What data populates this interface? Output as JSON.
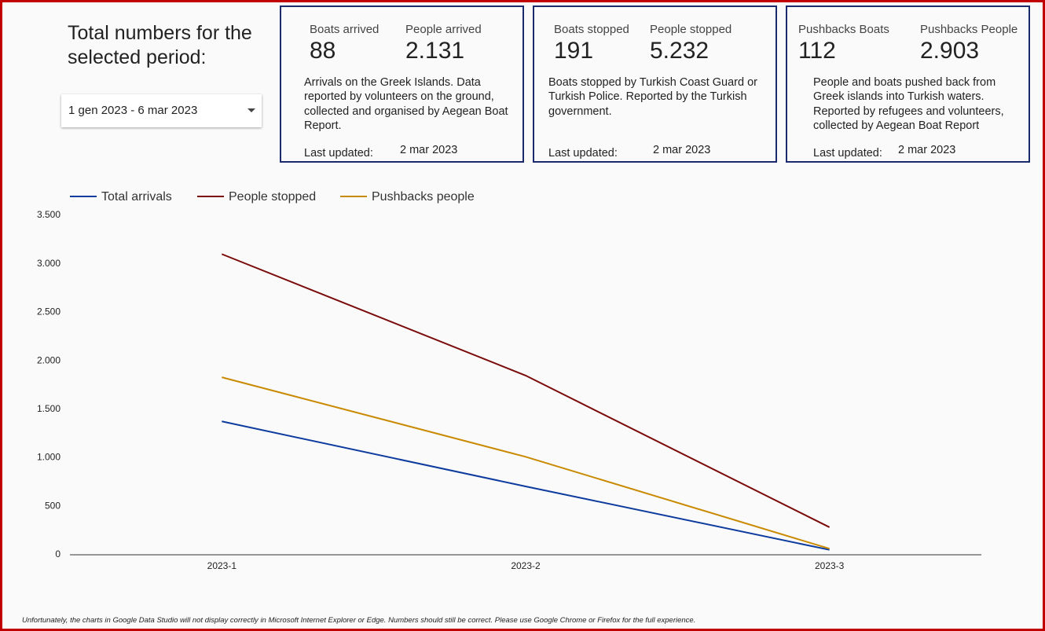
{
  "heading": "Total numbers for the selected period:",
  "date_range": "1 gen 2023 - 6 mar 2023",
  "cards": [
    {
      "stats": [
        {
          "label": "Boats arrived",
          "value": "88"
        },
        {
          "label": "People arrived",
          "value": "2.131"
        }
      ],
      "description": "Arrivals on the Greek Islands. Data reported by volunteers on the ground, collected and organised by Aegean Boat Report.",
      "updated_label": "Last updated:",
      "updated_date": "2 mar 2023"
    },
    {
      "stats": [
        {
          "label": "Boats stopped",
          "value": "191"
        },
        {
          "label": "People stopped",
          "value": "5.232"
        }
      ],
      "description": "Boats stopped by Turkish Coast Guard or Turkish Police. Reported by the Turkish government.",
      "updated_label": "Last updated:",
      "updated_date": "2 mar 2023"
    },
    {
      "stats": [
        {
          "label": "Pushbacks Boats",
          "value": "112"
        },
        {
          "label": "Pushbacks People",
          "value": "2.903"
        }
      ],
      "description": "People and boats pushed back from Greek islands into Turkish waters. Reported by refugees and volunteers, collected by Aegean Boat Report",
      "updated_label": "Last updated:",
      "updated_date": "2 mar 2023"
    }
  ],
  "chart_data": {
    "type": "line",
    "categories": [
      "2023-1",
      "2023-2",
      "2023-3"
    ],
    "series": [
      {
        "name": "Total arrivals",
        "color": "#0d3b9e",
        "values": [
          1375,
          705,
          51
        ]
      },
      {
        "name": "People stopped",
        "color": "#7b0a0a",
        "values": [
          3100,
          1848,
          284
        ]
      },
      {
        "name": "Pushbacks people",
        "color": "#c98a00",
        "values": [
          1830,
          1010,
          63
        ]
      }
    ],
    "ylim": [
      0,
      3500
    ],
    "yticks": [
      0,
      500,
      {
        "value": 1000,
        "label": "1.000"
      },
      {
        "value": 1500,
        "label": "1.500"
      },
      {
        "value": 2000,
        "label": "2.000"
      },
      {
        "value": 2500,
        "label": "2.500"
      },
      {
        "value": 3000,
        "label": "3.000"
      },
      {
        "value": 3500,
        "label": "3.500"
      }
    ],
    "legend": "top-left",
    "grid": false
  },
  "footnote": "Unfortunately, the charts in Google Data Studio will not display correctly in Microsoft Internet Explorer or Edge. Numbers should still be correct. Please use Google Chrome or Firefox for the full experience."
}
